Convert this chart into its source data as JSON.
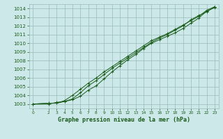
{
  "title": "Graphe pression niveau de la mer (hPa)",
  "bg_color": "#cce8e8",
  "grid_color": "#99bbbb",
  "line_color": "#1a5c1a",
  "x_values": [
    0,
    2,
    3,
    4,
    5,
    6,
    7,
    8,
    9,
    10,
    11,
    12,
    13,
    14,
    15,
    16,
    17,
    18,
    19,
    20,
    21,
    22,
    23
  ],
  "line1": [
    1003.0,
    1003.1,
    1003.1,
    1003.3,
    1003.5,
    1003.9,
    1004.6,
    1005.1,
    1005.9,
    1006.7,
    1007.4,
    1008.1,
    1008.7,
    1009.4,
    1010.0,
    1010.4,
    1010.8,
    1011.2,
    1011.7,
    1012.3,
    1012.9,
    1013.7,
    1014.1
  ],
  "line2": [
    1003.0,
    1003.1,
    1003.1,
    1003.4,
    1004.0,
    1004.7,
    1005.4,
    1006.0,
    1006.7,
    1007.3,
    1007.9,
    1008.5,
    1009.1,
    1009.7,
    1010.3,
    1010.7,
    1011.1,
    1011.6,
    1012.1,
    1012.6,
    1013.1,
    1013.8,
    1014.2
  ],
  "line3": [
    1003.0,
    1003.0,
    1003.2,
    1003.3,
    1003.6,
    1004.3,
    1005.1,
    1005.7,
    1006.4,
    1007.1,
    1007.7,
    1008.3,
    1008.9,
    1009.5,
    1010.1,
    1010.6,
    1011.0,
    1011.5,
    1012.0,
    1012.7,
    1013.2,
    1013.6,
    1014.2
  ],
  "ylim": [
    1002.5,
    1014.5
  ],
  "xlim": [
    -0.5,
    23.5
  ],
  "yticks": [
    1003,
    1004,
    1005,
    1006,
    1007,
    1008,
    1009,
    1010,
    1011,
    1012,
    1013,
    1014
  ],
  "xticks": [
    0,
    2,
    3,
    4,
    5,
    6,
    7,
    8,
    9,
    10,
    11,
    12,
    13,
    14,
    15,
    16,
    17,
    18,
    19,
    20,
    21,
    22,
    23
  ],
  "ytick_fontsize": 5.0,
  "xtick_fontsize": 4.2,
  "xlabel_fontsize": 6.0,
  "figsize": [
    3.2,
    2.0
  ],
  "dpi": 100
}
